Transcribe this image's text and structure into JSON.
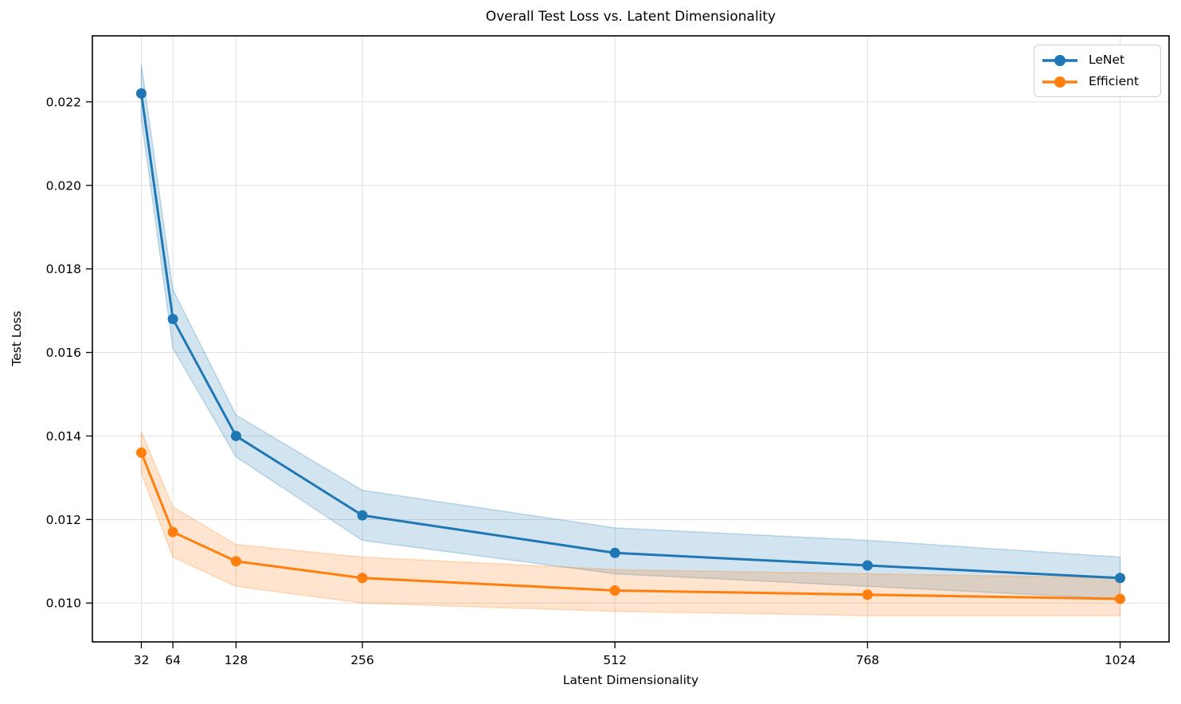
{
  "chart_data": {
    "type": "line",
    "title": "Overall Test Loss vs. Latent Dimensionality",
    "xlabel": "Latent Dimensionality",
    "ylabel": "Test Loss",
    "x": [
      32,
      64,
      128,
      256,
      512,
      768,
      1024
    ],
    "series": [
      {
        "name": "LeNet",
        "color": "#1f77b4",
        "values": [
          0.0222,
          0.0168,
          0.014,
          0.0121,
          0.0112,
          0.0109,
          0.0106
        ],
        "band_high": [
          0.0229,
          0.0175,
          0.0145,
          0.0127,
          0.0118,
          0.0115,
          0.0111
        ],
        "band_low": [
          0.0216,
          0.0161,
          0.0135,
          0.0115,
          0.0107,
          0.0104,
          0.0101
        ]
      },
      {
        "name": "Efficient",
        "color": "#ff7f0e",
        "values": [
          0.0136,
          0.0117,
          0.011,
          0.0106,
          0.0103,
          0.0102,
          0.0101
        ],
        "band_high": [
          0.0141,
          0.0123,
          0.0114,
          0.0111,
          0.0108,
          0.0107,
          0.0106
        ],
        "band_low": [
          0.0131,
          0.0111,
          0.0104,
          0.01,
          0.0098,
          0.0097,
          0.0097
        ]
      }
    ],
    "x_ticks": {
      "values": [
        32,
        64,
        128,
        256,
        512,
        768,
        1024
      ],
      "labels": [
        "32",
        "64",
        "128",
        "256",
        "512",
        "768",
        "1024"
      ]
    },
    "y_ticks": {
      "values": [
        0.01,
        0.012,
        0.014,
        0.016,
        0.018,
        0.02,
        0.022
      ],
      "labels": [
        "0.010",
        "0.012",
        "0.014",
        "0.016",
        "0.018",
        "0.020",
        "0.022"
      ]
    },
    "xlim": [
      -17.6,
      1073.6
    ],
    "ylim": [
      0.00907,
      0.02358
    ],
    "grid": true,
    "band_alpha": 0.2,
    "legend": {
      "position": "upper right",
      "entries": [
        "LeNet",
        "Efficient"
      ]
    }
  },
  "style": {
    "grid_color": "#e0e0e0",
    "spine_color": "#000000",
    "text_color": "#000000"
  }
}
